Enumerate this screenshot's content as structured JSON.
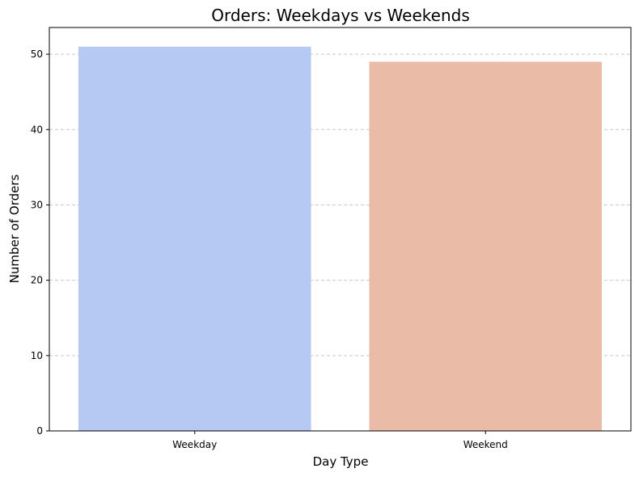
{
  "chart_data": {
    "type": "bar",
    "title": "Orders: Weekdays vs Weekends",
    "xlabel": "Day Type",
    "ylabel": "Number of Orders",
    "categories": [
      "Weekday",
      "Weekend"
    ],
    "values": [
      51,
      49
    ],
    "colors": [
      "#b5c9f3",
      "#eabba6"
    ],
    "ylim": [
      0,
      53.55
    ],
    "yticks": [
      0,
      10,
      20,
      30,
      40,
      50
    ],
    "grid": "y-dashed",
    "legend": "none"
  }
}
